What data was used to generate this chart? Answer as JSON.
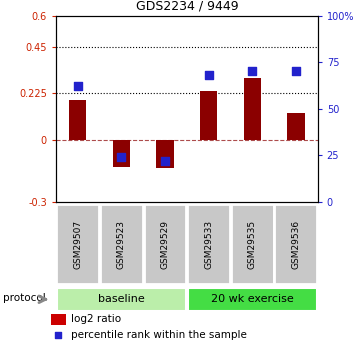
{
  "title": "GDS2234 / 9449",
  "samples": [
    "GSM29507",
    "GSM29523",
    "GSM29529",
    "GSM29533",
    "GSM29535",
    "GSM29536"
  ],
  "log2_ratio": [
    0.19,
    -0.13,
    -0.135,
    0.235,
    0.3,
    0.13
  ],
  "percentile_rank": [
    62,
    24,
    22,
    68,
    70,
    70
  ],
  "ylim_left": [
    -0.3,
    0.6
  ],
  "ylim_right": [
    0,
    100
  ],
  "yticks_left": [
    -0.3,
    0,
    0.225,
    0.45,
    0.6
  ],
  "yticks_right": [
    0,
    25,
    50,
    75,
    100
  ],
  "yticklabels_left": [
    "-0.3",
    "0",
    "0.225",
    "0.45",
    "0.6"
  ],
  "yticklabels_right": [
    "0",
    "25",
    "50",
    "75",
    "100%"
  ],
  "hlines": [
    0.225,
    0.45
  ],
  "zero_line": 0,
  "bar_color": "#8B0000",
  "dot_color": "#2222CC",
  "protocol_groups": [
    {
      "label": "baseline",
      "count": 3,
      "color": "#BBEEAA"
    },
    {
      "label": "20 wk exercise",
      "count": 3,
      "color": "#44DD44"
    }
  ],
  "protocol_label": "protocol",
  "legend_items": [
    {
      "color": "#CC0000",
      "label": "log2 ratio"
    },
    {
      "color": "#2222CC",
      "label": "percentile rank within the sample"
    }
  ],
  "bar_width": 0.4,
  "dot_size": 35,
  "background_color": "#ffffff",
  "plot_bg_color": "#ffffff",
  "label_area_color": "#C8C8C8",
  "tick_color_left": "#CC2200",
  "tick_color_right": "#2222CC",
  "figsize": [
    3.61,
    3.45
  ],
  "dpi": 100
}
